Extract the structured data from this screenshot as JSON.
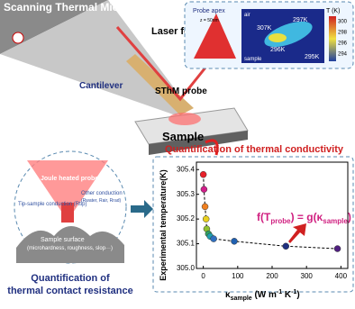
{
  "schematic": {
    "title": "Scanning Thermal Microscopy",
    "laser": "Laser feedback",
    "cantilever": "Cantilever",
    "probe": "SThM probe",
    "sample": "Sample"
  },
  "inset": {
    "apex": "Probe apex",
    "height": "z = 50nm",
    "medium": "air",
    "surface": "sample",
    "t_hot": "307K",
    "t_mid": "297K",
    "t_low": "296K",
    "t_base": "295K",
    "cbar_title": "T (K)",
    "cbar_ticks": [
      300,
      298,
      296,
      294
    ]
  },
  "contact": {
    "probe": "Joule heated probe",
    "other": "Other conduction",
    "other_terms": "(Rwater, Rair, Rrad)",
    "tip": "Tip-sample conduction (Rtip)",
    "surface": "Sample surface",
    "surface_props": "(microhardness, roughness, slop···)",
    "caption_1": "Quantification of",
    "caption_2": "thermal contact resistance"
  },
  "chart_data": {
    "type": "scatter",
    "title": "Quantification  of  thermal conductivity",
    "formula_parts": [
      "f(T",
      "probe",
      ") = g(κ",
      "sample",
      ")"
    ],
    "ylabel": "Experimental temperature(K)",
    "xlabel_parts": [
      "κ",
      "sample",
      " (W m",
      "-1",
      " K",
      "-1",
      ")"
    ],
    "series": [
      {
        "x": [
          0,
          2,
          5,
          8,
          10,
          15,
          20,
          30,
          90,
          240,
          390
        ],
        "values": [
          305.38,
          305.32,
          305.25,
          305.2,
          305.16,
          305.14,
          305.13,
          305.12,
          305.11,
          305.09,
          305.08
        ],
        "colors": [
          "#e8202a",
          "#d0208a",
          "#f08020",
          "#e8d020",
          "#90c030",
          "#30a060",
          "#20a0b0",
          "#3070c0",
          "#2060b0",
          "#203080",
          "#502080"
        ]
      }
    ],
    "xlim": [
      -20,
      420
    ],
    "xticks": [
      0,
      100,
      200,
      300,
      400
    ],
    "ylim": [
      305,
      305.43
    ],
    "yticks": [
      {
        "value": 305,
        "label": "305.0"
      },
      305.1,
      305.2,
      305.3,
      305.4
    ]
  }
}
